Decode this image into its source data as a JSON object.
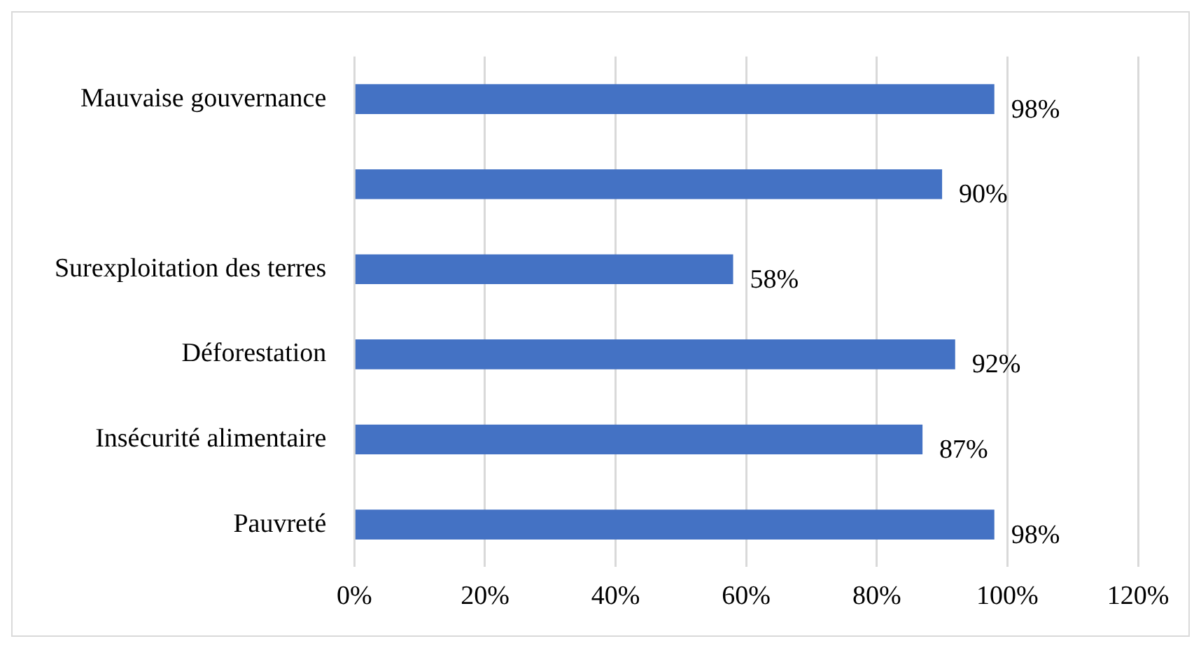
{
  "chart_data": {
    "type": "bar",
    "orientation": "horizontal",
    "categories": [
      "Mauvaise gouvernance",
      null,
      "Surexploitation des terres",
      "Déforestation",
      "Insécurité alimentaire",
      "Pauvreté"
    ],
    "values": [
      98,
      90,
      58,
      92,
      87,
      98
    ],
    "value_labels": [
      "98%",
      "90%",
      "58%",
      "92%",
      "87%",
      "98%"
    ],
    "color": "#4472c4",
    "xlim": [
      0,
      120
    ],
    "xticks": [
      {
        "value": 0,
        "label": "0%"
      },
      {
        "value": 20,
        "label": "20%"
      },
      {
        "value": 40,
        "label": "40%"
      },
      {
        "value": 60,
        "label": "60%"
      },
      {
        "value": 80,
        "label": "80%"
      },
      {
        "value": 100,
        "label": "100%"
      },
      {
        "value": 120,
        "label": "120%"
      }
    ],
    "grid": "x",
    "legend": false
  }
}
